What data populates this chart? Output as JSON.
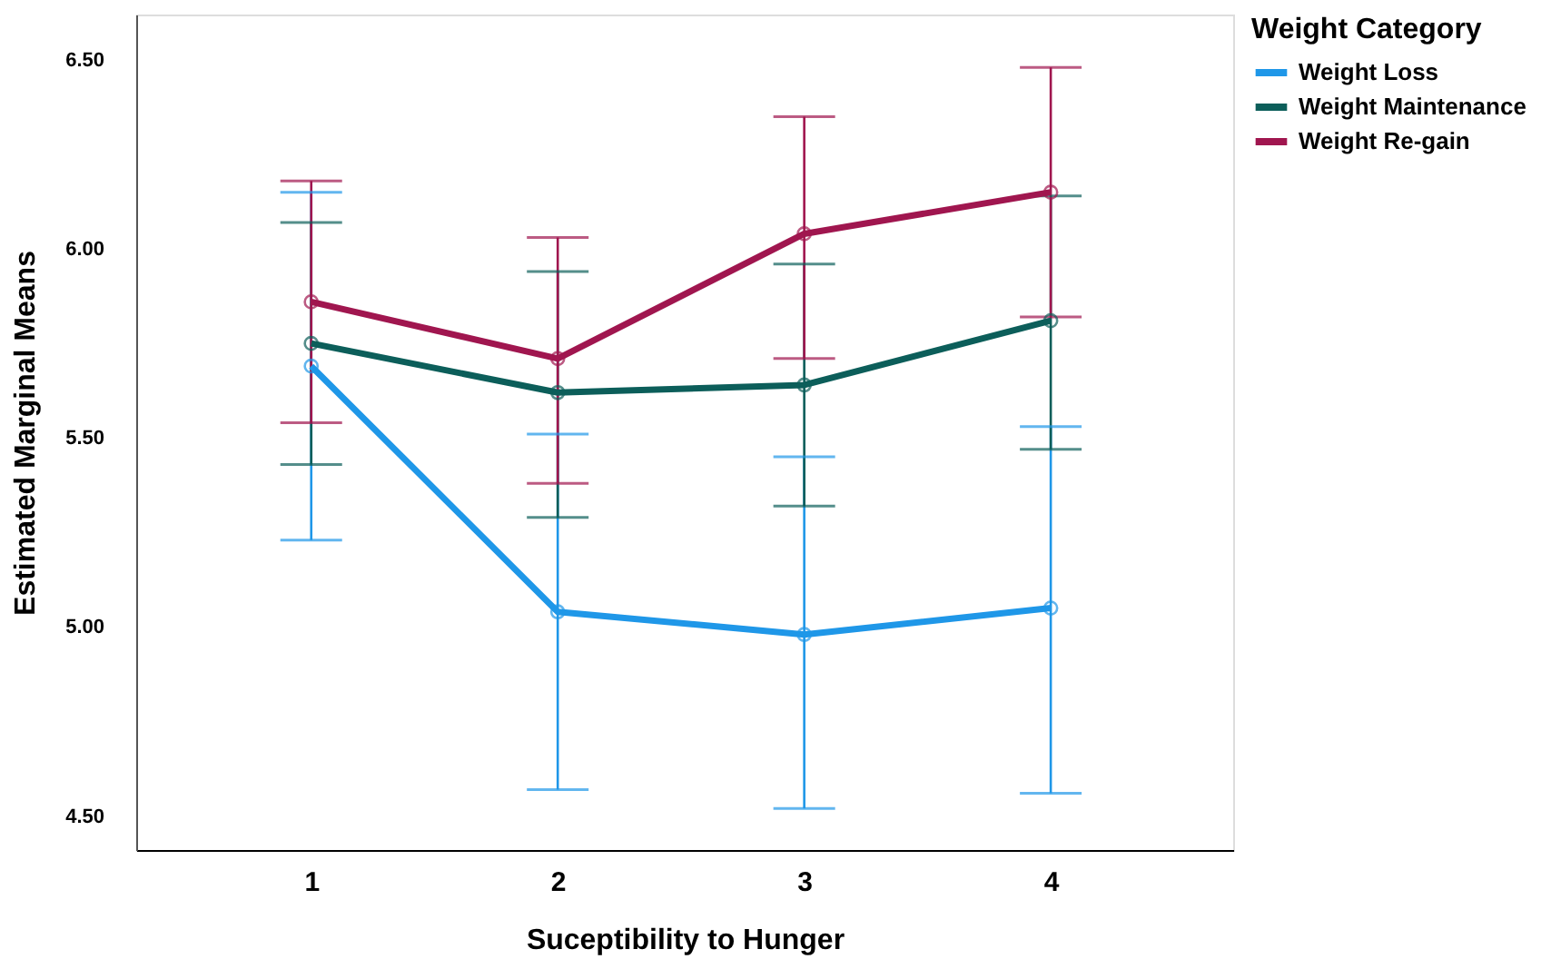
{
  "chart_data": {
    "type": "line",
    "xlabel": "Suceptibility to Hunger",
    "ylabel": "Estimated Marginal Means",
    "legend_title": "Weight Category",
    "categories": [
      "1",
      "2",
      "3",
      "4"
    ],
    "series": [
      {
        "name": "Weight Loss",
        "color": "#1f97e8",
        "values": [
          5.69,
          5.04,
          4.98,
          5.05
        ],
        "errors": [
          [
            5.23,
            6.15
          ],
          [
            4.57,
            5.51
          ],
          [
            4.52,
            5.45
          ],
          [
            4.56,
            5.53
          ]
        ]
      },
      {
        "name": "Weight Maintenance",
        "color": "#0c5e5a",
        "values": [
          5.75,
          5.62,
          5.64,
          5.81
        ],
        "errors": [
          [
            5.43,
            6.07
          ],
          [
            5.29,
            5.94
          ],
          [
            5.32,
            5.96
          ],
          [
            5.47,
            6.14
          ]
        ]
      },
      {
        "name": "Weight Re-gain",
        "color": "#a0164f",
        "values": [
          5.86,
          5.71,
          6.04,
          6.15
        ],
        "errors": [
          [
            5.54,
            6.18
          ],
          [
            5.38,
            6.03
          ],
          [
            5.71,
            6.35
          ],
          [
            5.82,
            6.48
          ]
        ]
      }
    ],
    "ylim": [
      4.41,
      6.62
    ],
    "yticks": [
      {
        "value": 4.5,
        "label": "4.50"
      },
      {
        "value": 5.0,
        "label": "5.00"
      },
      {
        "value": 5.5,
        "label": "5.50"
      },
      {
        "value": 6.0,
        "label": "6.00"
      },
      {
        "value": 6.5,
        "label": "6.50"
      }
    ],
    "grid": false,
    "legend": "top right",
    "marker": "circle",
    "line_style": "solid"
  }
}
